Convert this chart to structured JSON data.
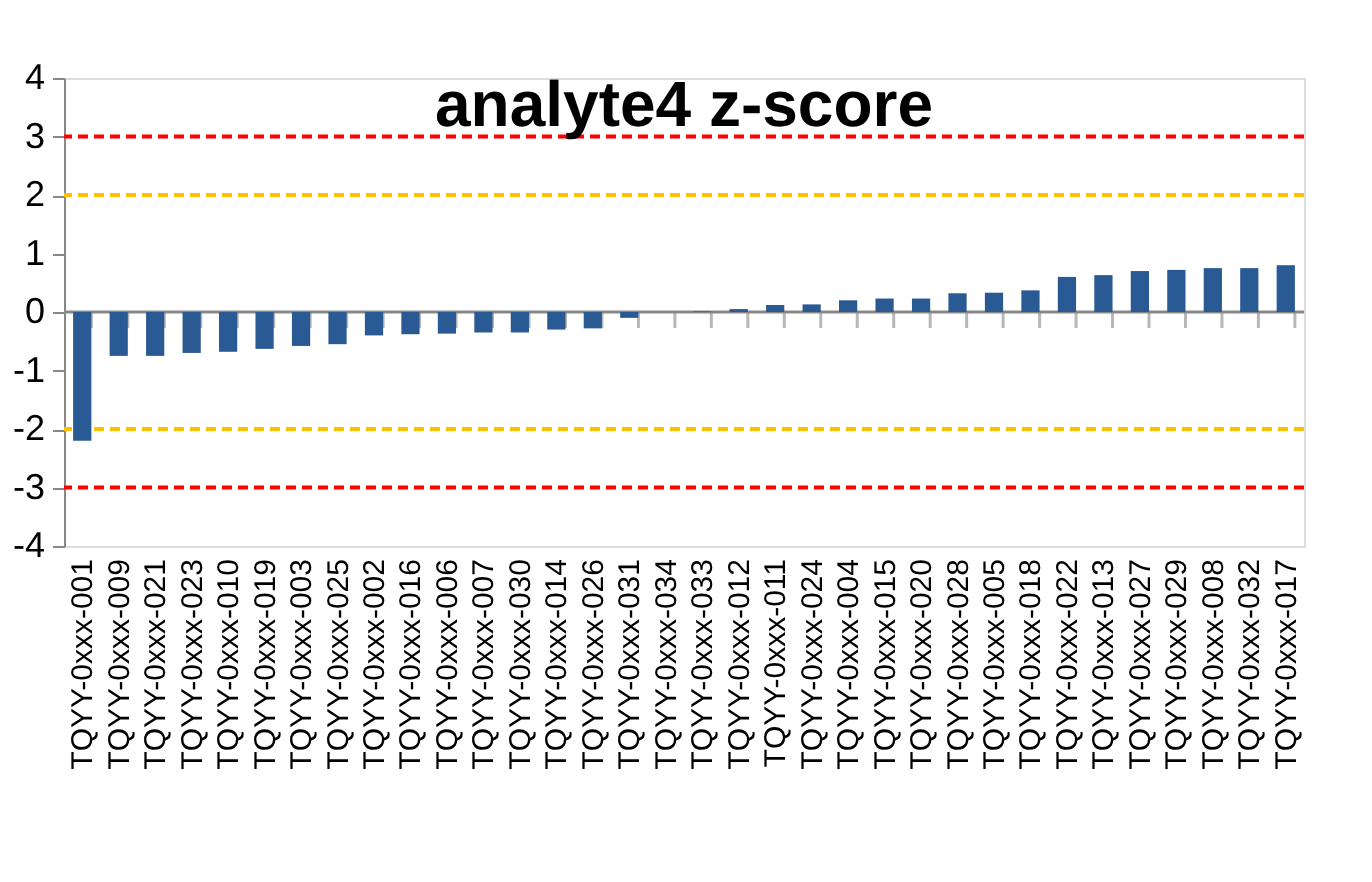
{
  "chart_data": {
    "type": "bar",
    "title": "analyte4 z-score",
    "categories": [
      "TQYY-0xxx-001",
      "TQYY-0xxx-009",
      "TQYY-0xxx-021",
      "TQYY-0xxx-023",
      "TQYY-0xxx-010",
      "TQYY-0xxx-019",
      "TQYY-0xxx-003",
      "TQYY-0xxx-025",
      "TQYY-0xxx-002",
      "TQYY-0xxx-016",
      "TQYY-0xxx-006",
      "TQYY-0xxx-007",
      "TQYY-0xxx-030",
      "TQYY-0xxx-014",
      "TQYY-0xxx-026",
      "TQYY-0xxx-031",
      "TQYY-0xxx-034",
      "TQYY-0xxx-033",
      "TQYY-0xxx-012",
      "TQYY-0xxx-011",
      "TQYY-0xxx-024",
      "TQYY-0xxx-004",
      "TQYY-0xxx-015",
      "TQYY-0xxx-020",
      "TQYY-0xxx-028",
      "TQYY-0xxx-005",
      "TQYY-0xxx-018",
      "TQYY-0xxx-022",
      "TQYY-0xxx-013",
      "TQYY-0xxx-027",
      "TQYY-0xxx-029",
      "TQYY-0xxx-008",
      "TQYY-0xxx-032",
      "TQYY-0xxx-017"
    ],
    "values": [
      -2.2,
      -0.75,
      -0.75,
      -0.7,
      -0.68,
      -0.63,
      -0.58,
      -0.55,
      -0.4,
      -0.38,
      -0.37,
      -0.35,
      -0.35,
      -0.3,
      -0.28,
      -0.1,
      0.0,
      0.01,
      0.05,
      0.12,
      0.13,
      0.2,
      0.23,
      0.23,
      0.32,
      0.33,
      0.37,
      0.6,
      0.63,
      0.7,
      0.72,
      0.75,
      0.75,
      0.8
    ],
    "color": "#2a5a94",
    "ylim": [
      -4,
      4
    ],
    "yticks": [
      -4,
      -3,
      -2,
      -1,
      0,
      1,
      2,
      3,
      4
    ],
    "grid": false,
    "ref_lines": [
      {
        "axis": "y",
        "value": 3,
        "color": "#ff0000",
        "line_style": "dashed"
      },
      {
        "axis": "y",
        "value": 2,
        "color": "#ffc000",
        "line_style": "dashed"
      },
      {
        "axis": "y",
        "value": -2,
        "color": "#ffc000",
        "line_style": "dashed"
      },
      {
        "axis": "y",
        "value": -3,
        "color": "#ff0000",
        "line_style": "dashed"
      }
    ]
  }
}
